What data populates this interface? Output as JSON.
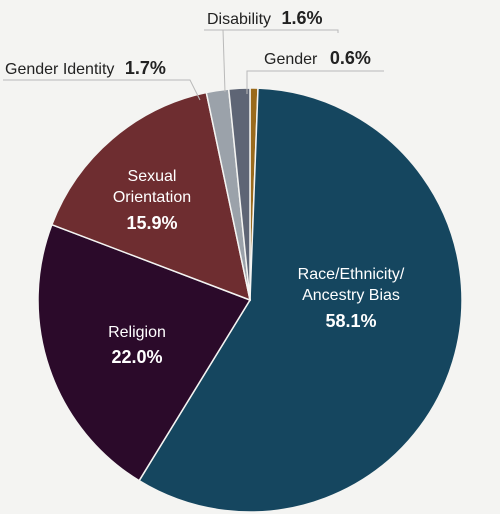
{
  "chart_data": {
    "type": "pie",
    "title": "",
    "slices": [
      {
        "label": "Gender",
        "value": 0.6,
        "value_label": "0.6%",
        "color": "#9a6a1c"
      },
      {
        "label_lines": [
          "Race/Ethnicity/",
          "Ancestry Bias"
        ],
        "value": 58.1,
        "value_label": "58.1%",
        "color": "#15465f"
      },
      {
        "label": "Religion",
        "value": 22.0,
        "value_label": "22.0%",
        "color": "#2b0a2a"
      },
      {
        "label_lines": [
          "Sexual",
          "Orientation"
        ],
        "value": 15.9,
        "value_label": "15.9%",
        "color": "#6e2d30"
      },
      {
        "label": "Gender Identity",
        "value": 1.7,
        "value_label": "1.7%",
        "color": "#9ba2aa"
      },
      {
        "label": "Disability",
        "value": 1.6,
        "value_label": "1.6%",
        "color": "#5e6575"
      }
    ]
  }
}
